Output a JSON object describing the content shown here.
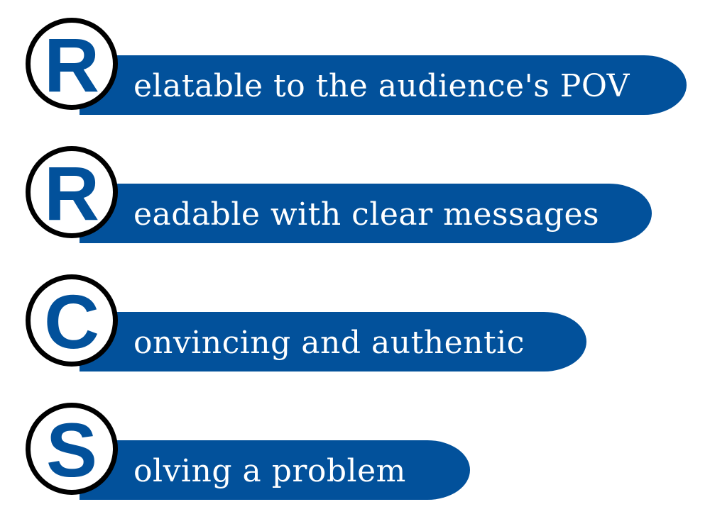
{
  "accent_color": "#02519b",
  "outline_color": "#000000",
  "items": [
    {
      "letter": "R",
      "text": "elatable to the audience's POV"
    },
    {
      "letter": "R",
      "text": "eadable with clear messages"
    },
    {
      "letter": "C",
      "text": "onvincing and authentic"
    },
    {
      "letter": "S",
      "text": "olving a problem"
    }
  ]
}
